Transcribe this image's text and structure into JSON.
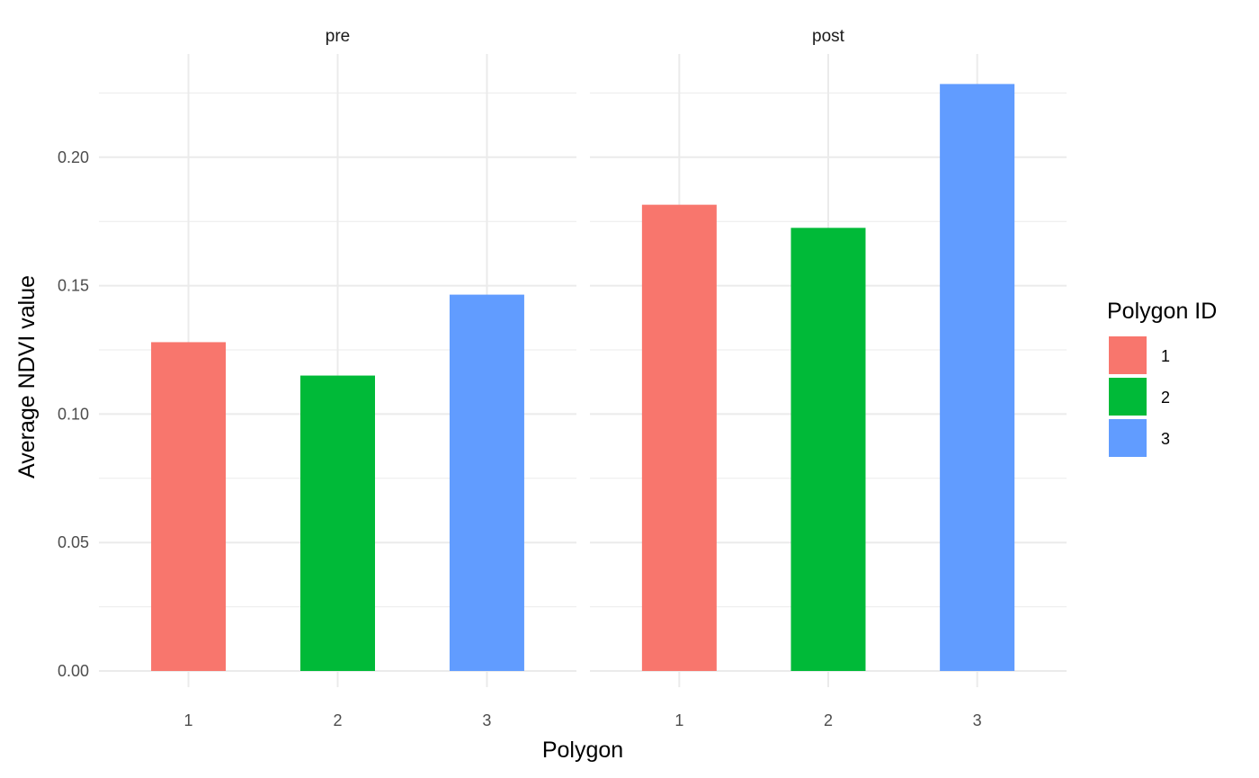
{
  "chart_data": {
    "type": "bar",
    "facets": [
      "pre",
      "post"
    ],
    "categories": [
      "1",
      "2",
      "3"
    ],
    "series": [
      {
        "facet": "pre",
        "values": [
          0.128,
          0.115,
          0.1465
        ]
      },
      {
        "facet": "post",
        "values": [
          0.1815,
          0.1725,
          0.2285
        ]
      }
    ],
    "xlabel": "Polygon",
    "ylabel": "Average NDVI value",
    "ylim": [
      0,
      0.23
    ],
    "yticks": [
      0.0,
      0.05,
      0.1,
      0.15,
      0.2
    ],
    "ytick_labels": [
      "0.00",
      "0.05",
      "0.10",
      "0.15",
      "0.20"
    ],
    "grid": true,
    "legend": {
      "title": "Polygon ID",
      "position": "right",
      "entries": [
        "1",
        "2",
        "3"
      ]
    },
    "colors": [
      "#F8766D",
      "#00BA38",
      "#619CFF"
    ]
  }
}
